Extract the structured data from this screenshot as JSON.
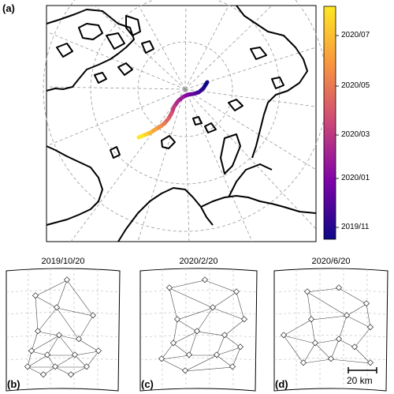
{
  "panel_a": {
    "label": "(a)",
    "colorbar": {
      "ticks": [
        "2020/07",
        "2020/05",
        "2020/03",
        "2020/01",
        "2019/11"
      ],
      "colors": [
        "#fde725",
        "#f89540",
        "#cc4778",
        "#7e03a8",
        "#0d0887"
      ]
    },
    "track": {
      "start": "2019/10",
      "end": "2020/07",
      "points": [
        [
          263,
          104
        ],
        [
          258,
          112
        ],
        [
          252,
          117
        ],
        [
          245,
          119
        ],
        [
          238,
          120
        ],
        [
          232,
          123
        ],
        [
          226,
          128
        ],
        [
          221,
          135
        ],
        [
          218,
          143
        ],
        [
          214,
          150
        ],
        [
          209,
          156
        ],
        [
          204,
          160
        ],
        [
          197,
          164
        ],
        [
          191,
          168
        ],
        [
          186,
          170
        ],
        [
          181,
          172
        ],
        [
          176,
          174
        ]
      ]
    }
  },
  "panels_bottom": [
    {
      "label": "(b)",
      "date": "2019/10/20"
    },
    {
      "label": "(c)",
      "date": "2020/2/20"
    },
    {
      "label": "(d)",
      "date": "2020/6/20"
    }
  ],
  "scale_bar": {
    "label": "20 km"
  }
}
